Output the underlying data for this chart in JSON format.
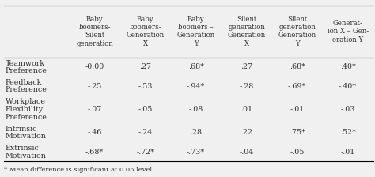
{
  "col_headers": [
    "Baby\nboomers-\nSilent\ngeneration",
    "Baby\nboomers-\nGeneration\nX",
    "Baby\nboomers –\nGeneration\nY",
    "Silent\ngeneration\nGeneration\nX",
    "Silent\ngeneration\nGeneration\nY",
    "Generat-\nion X – Gen-\neration Y"
  ],
  "row_labels": [
    "Teamwork\nPreference",
    "Feedback\nPreference",
    "Workplace\nFlexibility\nPreference",
    "Intrinsic\nMotivation",
    "Extrinsic\nMotivation"
  ],
  "data": [
    [
      "-0.00",
      ".27",
      ".68*",
      ".27",
      ".68*",
      ".40*"
    ],
    [
      "-.25",
      "-.53",
      "-.94*",
      "-.28",
      "-.69*",
      "-.40*"
    ],
    [
      "-.07",
      "-.05",
      "-.08",
      ".01",
      "-.01",
      "-.03"
    ],
    [
      "-.46",
      "-.24",
      ".28",
      ".22",
      ".75*",
      ".52*"
    ],
    [
      "-.68*",
      "-.72*",
      "-.73*",
      "-.04",
      "-.05",
      "-.01"
    ]
  ],
  "footnote": "* Mean difference is significant at 0.05 level.",
  "bg_color": "#f0f0f0",
  "text_color": "#333333",
  "header_fontsize": 6.2,
  "cell_fontsize": 6.8,
  "label_fontsize": 6.8
}
